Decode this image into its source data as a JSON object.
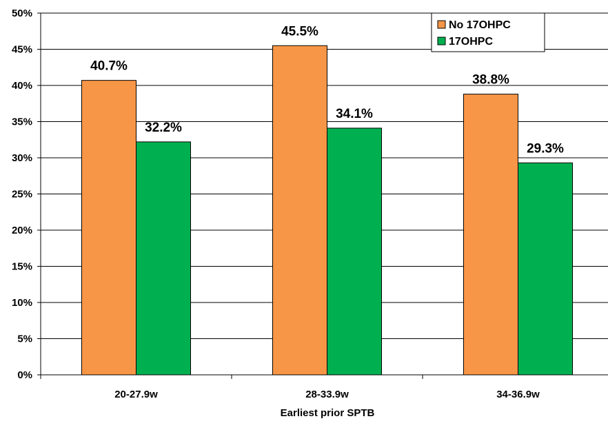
{
  "chart_data": {
    "type": "bar",
    "categories": [
      "20-27.9w",
      "28-33.9w",
      "34-36.9w"
    ],
    "series": [
      {
        "name": "No 17OHPC",
        "values": [
          40.7,
          45.5,
          38.8
        ],
        "labels": [
          "40.7%",
          "45.5%",
          "38.8%"
        ],
        "color": "#F79646"
      },
      {
        "name": "17OHPC",
        "values": [
          32.2,
          34.1,
          29.3
        ],
        "labels": [
          "32.2%",
          "34.1%",
          "29.3%"
        ],
        "color": "#00B050"
      }
    ],
    "y_ticks": [
      {
        "value": 0,
        "label": "0%"
      },
      {
        "value": 5,
        "label": "5%"
      },
      {
        "value": 10,
        "label": "10%"
      },
      {
        "value": 15,
        "label": "15%"
      },
      {
        "value": 20,
        "label": "20%"
      },
      {
        "value": 25,
        "label": "25%"
      },
      {
        "value": 30,
        "label": "30%"
      },
      {
        "value": 35,
        "label": "35%"
      },
      {
        "value": 40,
        "label": "40%"
      },
      {
        "value": 45,
        "label": "45%"
      },
      {
        "value": 50,
        "label": "50%"
      }
    ],
    "ylim": [
      0,
      50
    ],
    "xlabel": "Earliest prior SPTB",
    "ylabel": "",
    "title": "",
    "grid": true,
    "legend_position": "top-right"
  }
}
